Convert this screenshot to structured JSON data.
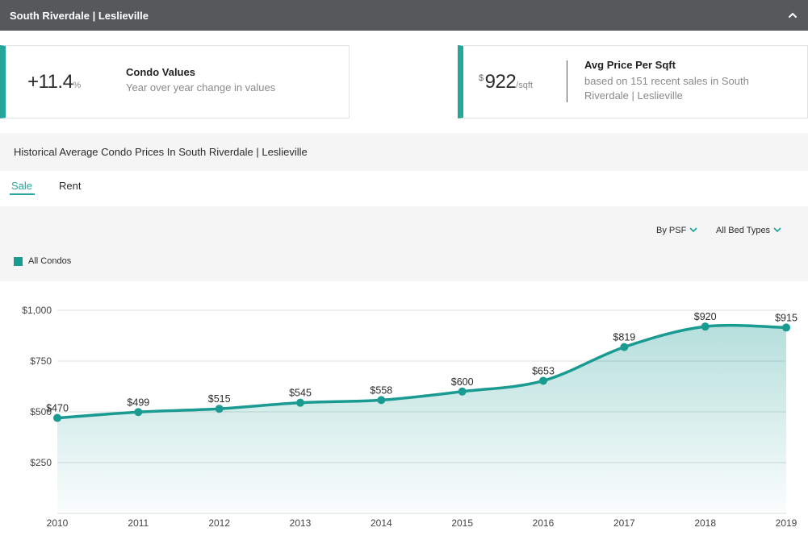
{
  "header": {
    "title": "South Riverdale | Leslieville",
    "toggle_icon": "chevron-up-icon"
  },
  "card_condo": {
    "value": "+11.4",
    "unit": "%",
    "title": "Condo Values",
    "subtitle": "Year over year change in values"
  },
  "card_price": {
    "currency": "$",
    "value": "922",
    "unit": "/sqft",
    "title": "Avg Price Per Sqft",
    "subtitle_line1": "based on 151 recent sales in South",
    "subtitle_line2": "Riverdale | Leslieville"
  },
  "section": {
    "title": "Historical Average Condo Prices In South Riverdale | Leslieville"
  },
  "tabs": [
    {
      "label": "Sale",
      "active": true
    },
    {
      "label": "Rent",
      "active": false
    }
  ],
  "controls": {
    "metric": "By PSF",
    "bed_types": "All Bed Types",
    "chevron_icon": "chevron-down-icon"
  },
  "colors": {
    "accent": "#26a69a",
    "line": "#1a9b92",
    "header_bg": "#55595c",
    "band_bg": "#f5f5f5"
  },
  "chart_data": {
    "type": "area",
    "categories": [
      "2010",
      "2011",
      "2012",
      "2013",
      "2014",
      "2015",
      "2016",
      "2017",
      "2018",
      "2019"
    ],
    "series": [
      {
        "name": "All Condos",
        "values": [
          470,
          499,
          515,
          545,
          558,
          600,
          653,
          819,
          920,
          915
        ]
      }
    ],
    "data_labels": [
      "$470",
      "$499",
      "$515",
      "$545",
      "$558",
      "$600",
      "$653",
      "$819",
      "$920",
      "$915"
    ],
    "y_ticks": [
      250,
      500,
      750,
      1000
    ],
    "y_tick_labels": [
      "$250",
      "$500",
      "$750",
      "$1,000"
    ],
    "ylim": [
      0,
      1000
    ],
    "grid": true,
    "legend": "top-left"
  }
}
